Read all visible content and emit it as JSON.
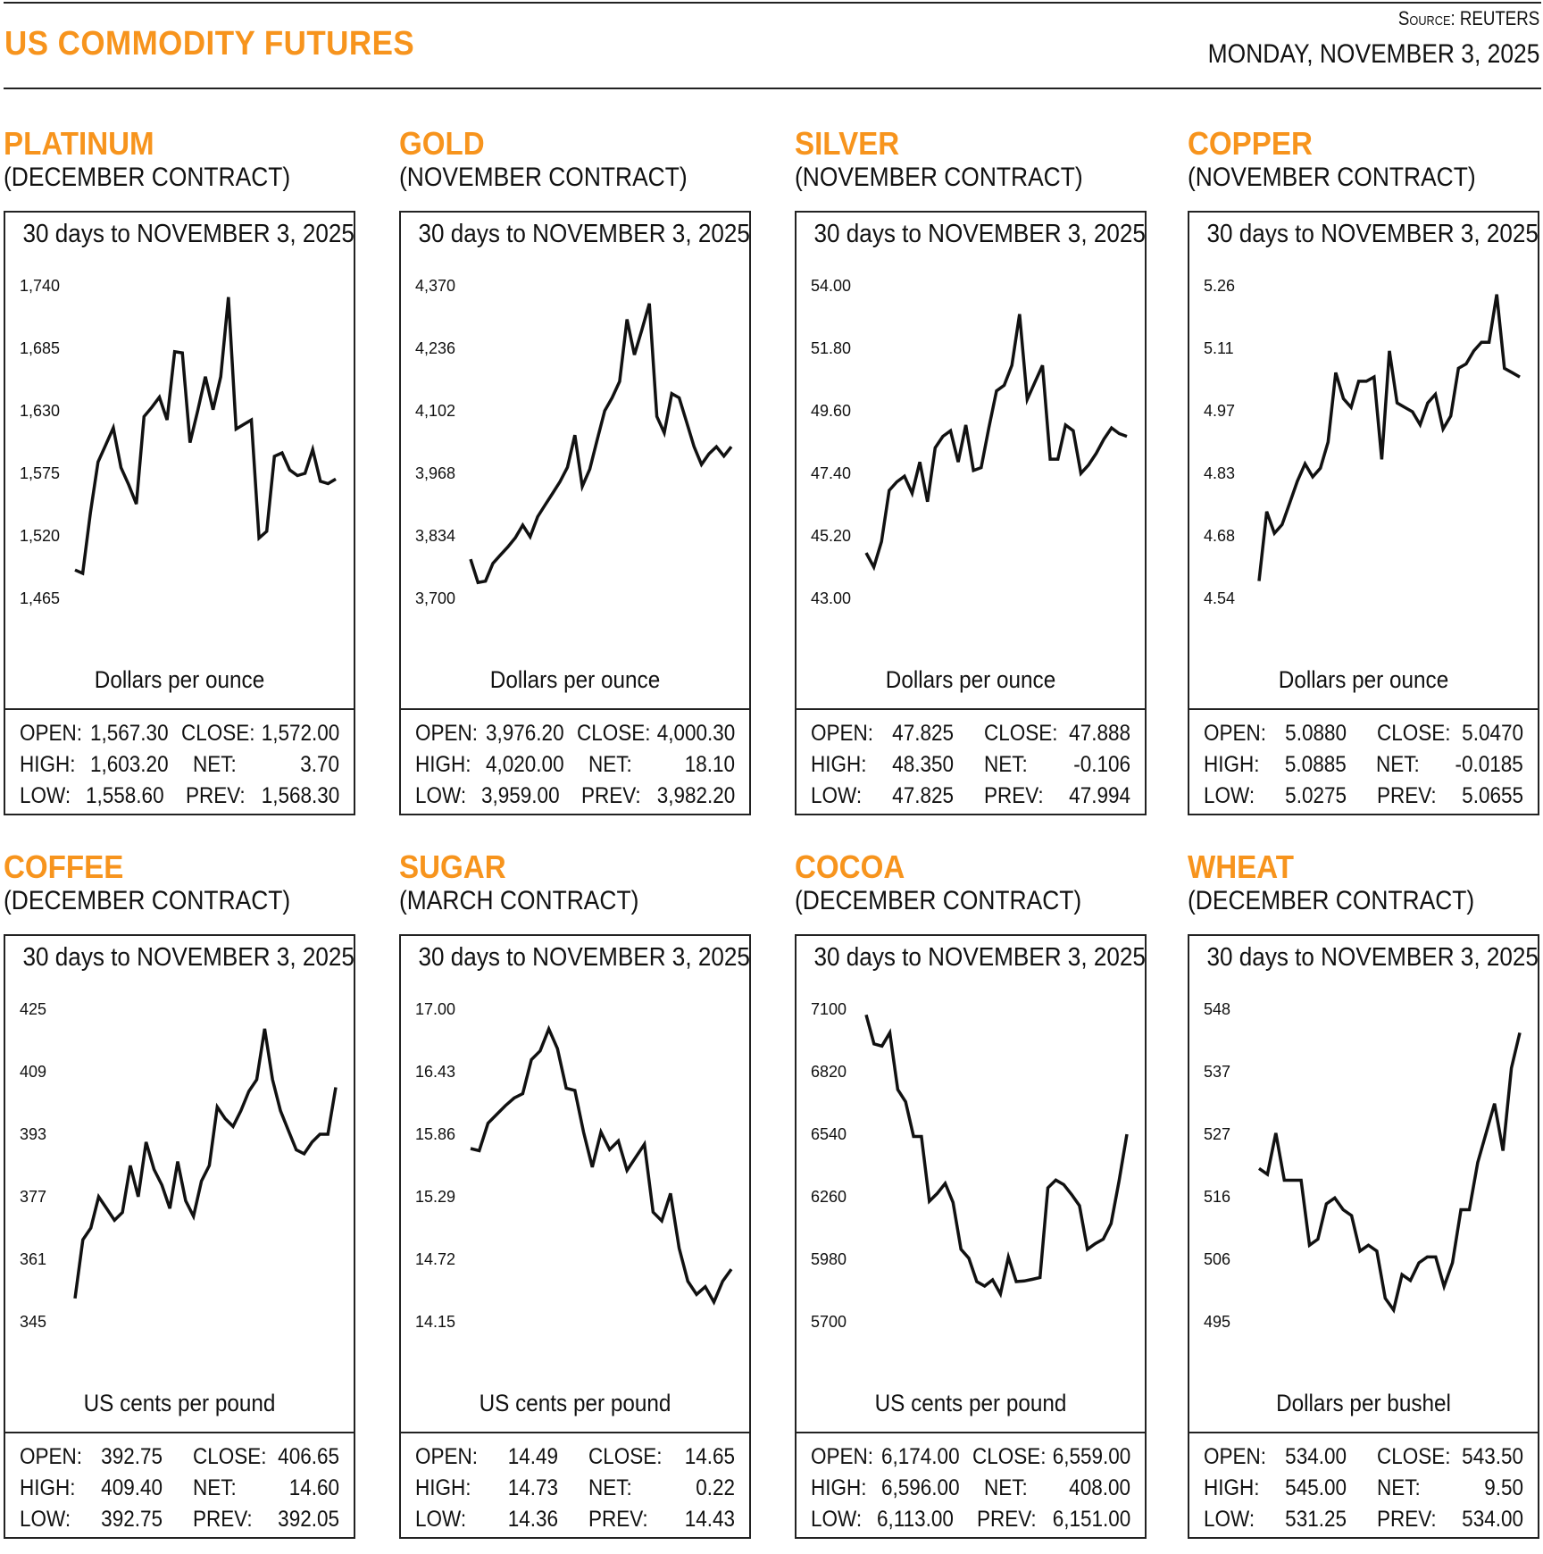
{
  "header": {
    "title": "US COMMODITY FUTURES",
    "source": "Source: REUTERS",
    "date": "MONDAY, NOVEMBER 3, 2025"
  },
  "colors": {
    "accent": "#f7941d",
    "line": "#111111"
  },
  "panels": [
    {
      "name": "PLATINUM",
      "contract": "(DECEMBER CONTRACT)",
      "box_title": "30 days to NOVEMBER 3, 2025",
      "unit": "Dollars per ounce",
      "stats": {
        "open_label": "OPEN:",
        "open": "1,567.30",
        "high_label": "HIGH:",
        "high": "1,603.20",
        "low_label": "LOW:",
        "low": "1,558.60",
        "close_label": "CLOSE:",
        "close": "1,572.00",
        "net_label": "NET:",
        "net": "3.70",
        "prev_label": "PREV:",
        "prev": "1,568.30"
      }
    },
    {
      "name": "GOLD",
      "contract": "(NOVEMBER CONTRACT)",
      "box_title": "30 days to NOVEMBER 3, 2025",
      "unit": "Dollars per ounce",
      "stats": {
        "open_label": "OPEN:",
        "open": "3,976.20",
        "high_label": "HIGH:",
        "high": "4,020.00",
        "low_label": "LOW:",
        "low": "3,959.00",
        "close_label": "CLOSE:",
        "close": "4,000.30",
        "net_label": "NET:",
        "net": "18.10",
        "prev_label": "PREV:",
        "prev": "3,982.20"
      }
    },
    {
      "name": "SILVER",
      "contract": "(NOVEMBER CONTRACT)",
      "box_title": "30 days to NOVEMBER 3, 2025",
      "unit": "Dollars per ounce",
      "stats": {
        "open_label": "OPEN:",
        "open": "47.825",
        "high_label": "HIGH:",
        "high": "48.350",
        "low_label": "LOW:",
        "low": "47.825",
        "close_label": "CLOSE:",
        "close": "47.888",
        "net_label": "NET:",
        "net": "-0.106",
        "prev_label": "PREV:",
        "prev": "47.994"
      }
    },
    {
      "name": "COPPER",
      "contract": "(NOVEMBER CONTRACT)",
      "box_title": "30 days to NOVEMBER 3, 2025",
      "unit": "Dollars per ounce",
      "stats": {
        "open_label": "OPEN:",
        "open": "5.0880",
        "high_label": "HIGH:",
        "high": "5.0885",
        "low_label": "LOW:",
        "low": "5.0275",
        "close_label": "CLOSE:",
        "close": "5.0470",
        "net_label": "NET:",
        "net": "-0.0185",
        "prev_label": "PREV:",
        "prev": "5.0655"
      }
    },
    {
      "name": "COFFEE",
      "contract": "(DECEMBER CONTRACT)",
      "box_title": "30 days to NOVEMBER 3, 2025",
      "unit": "US cents per pound",
      "stats": {
        "open_label": "OPEN:",
        "open": "392.75",
        "high_label": "HIGH:",
        "high": "409.40",
        "low_label": "LOW:",
        "low": "392.75",
        "close_label": "CLOSE:",
        "close": "406.65",
        "net_label": "NET:",
        "net": "14.60",
        "prev_label": "PREV:",
        "prev": "392.05"
      }
    },
    {
      "name": "SUGAR",
      "contract": "(MARCH CONTRACT)",
      "box_title": "30 days to NOVEMBER 3, 2025",
      "unit": "US cents per pound",
      "stats": {
        "open_label": "OPEN:",
        "open": "14.49",
        "high_label": "HIGH:",
        "high": "14.73",
        "low_label": "LOW:",
        "low": "14.36",
        "close_label": "CLOSE:",
        "close": "14.65",
        "net_label": "NET:",
        "net": "0.22",
        "prev_label": "PREV:",
        "prev": "14.43"
      }
    },
    {
      "name": "COCOA",
      "contract": "(DECEMBER CONTRACT)",
      "box_title": "30 days to NOVEMBER 3, 2025",
      "unit": "US cents per pound",
      "stats": {
        "open_label": "OPEN:",
        "open": "6,174.00",
        "high_label": "HIGH:",
        "high": "6,596.00",
        "low_label": "LOW:",
        "low": "6,113.00",
        "close_label": "CLOSE:",
        "close": "6,559.00",
        "net_label": "NET:",
        "net": "408.00",
        "prev_label": "PREV:",
        "prev": "6,151.00"
      }
    },
    {
      "name": "WHEAT",
      "contract": "(DECEMBER CONTRACT)",
      "box_title": "30 days to NOVEMBER 3, 2025",
      "unit": "Dollars per bushel",
      "stats": {
        "open_label": "OPEN:",
        "open": "534.00",
        "high_label": "HIGH:",
        "high": "545.00",
        "low_label": "LOW:",
        "low": "531.25",
        "close_label": "CLOSE:",
        "close": "543.50",
        "net_label": "NET:",
        "net": "9.50",
        "prev_label": "PREV:",
        "prev": "534.00"
      }
    }
  ],
  "chart_data": [
    {
      "type": "line",
      "title": "PLATINUM (DECEMBER CONTRACT)",
      "subtitle": "30 days to NOVEMBER 3, 2025",
      "ylabel": "Dollars per ounce",
      "yticks": [
        "1,465",
        "1,520",
        "1,575",
        "1,630",
        "1,685",
        "1,740"
      ],
      "ylim": [
        1465,
        1740
      ],
      "grid": false,
      "values": [
        1490,
        1487,
        1540,
        1585,
        1600,
        1615,
        1580,
        1565,
        1548,
        1625,
        1633,
        1642,
        1622,
        1682,
        1681,
        1602,
        1630,
        1660,
        1631,
        1660,
        1730,
        1614,
        1618,
        1622,
        1518,
        1524,
        1590,
        1593,
        1578,
        1573,
        1575,
        1596,
        1568,
        1566,
        1570
      ]
    },
    {
      "type": "line",
      "title": "GOLD (NOVEMBER CONTRACT)",
      "subtitle": "30 days to NOVEMBER 3, 2025",
      "ylabel": "Dollars per ounce",
      "yticks": [
        "3,700",
        "3,834",
        "3,968",
        "4,102",
        "4,236",
        "4,370"
      ],
      "ylim": [
        3700,
        4370
      ],
      "grid": false,
      "values": [
        3784,
        3734,
        3737,
        3775,
        3793,
        3810,
        3830,
        3857,
        3832,
        3875,
        3900,
        3925,
        3950,
        3981,
        4050,
        3940,
        3977,
        4040,
        4102,
        4130,
        4165,
        4298,
        4222,
        4276,
        4332,
        4090,
        4055,
        4139,
        4130,
        4078,
        4025,
        3987,
        4010,
        4025,
        4005,
        4025
      ]
    },
    {
      "type": "line",
      "title": "SILVER (NOVEMBER CONTRACT)",
      "subtitle": "30 days to NOVEMBER 3, 2025",
      "ylabel": "Dollars per ounce",
      "yticks": [
        "43.00",
        "45.20",
        "47.40",
        "49.60",
        "51.80",
        "54.00"
      ],
      "ylim": [
        43.0,
        54.0
      ],
      "grid": false,
      "values": [
        44.6,
        44.1,
        45.0,
        46.8,
        47.1,
        47.3,
        46.7,
        47.8,
        46.4,
        48.3,
        48.7,
        48.9,
        47.8,
        49.1,
        47.5,
        47.6,
        49.0,
        50.3,
        50.5,
        51.2,
        53.0,
        50.0,
        50.6,
        51.2,
        47.9,
        47.9,
        49.1,
        48.9,
        47.4,
        47.7,
        48.1,
        48.6,
        49.0,
        48.8,
        48.7
      ]
    },
    {
      "type": "line",
      "title": "COPPER (NOVEMBER CONTRACT)",
      "subtitle": "30 days to NOVEMBER 3, 2025",
      "ylabel": "Dollars per ounce",
      "yticks": [
        "4.54",
        "4.68",
        "4.83",
        "4.97",
        "5.11",
        "5.26"
      ],
      "ylim": [
        4.54,
        5.26
      ],
      "grid": false,
      "values": [
        4.58,
        4.74,
        4.69,
        4.71,
        4.76,
        4.81,
        4.85,
        4.82,
        4.84,
        4.9,
        5.06,
        5.0,
        4.98,
        5.04,
        5.04,
        5.05,
        4.86,
        5.11,
        4.99,
        4.98,
        4.97,
        4.94,
        4.99,
        5.01,
        4.93,
        4.96,
        5.07,
        5.08,
        5.11,
        5.13,
        5.13,
        5.24,
        5.07,
        5.06,
        5.05
      ]
    },
    {
      "type": "line",
      "title": "COFFEE (DECEMBER CONTRACT)",
      "subtitle": "30 days to NOVEMBER 3, 2025",
      "ylabel": "US cents per pound",
      "yticks": [
        "345",
        "361",
        "377",
        "393",
        "409",
        "425"
      ],
      "ylim": [
        345,
        425
      ],
      "grid": false,
      "values": [
        351,
        366,
        369,
        377,
        374,
        371,
        373,
        385,
        377,
        391,
        384,
        380,
        374,
        386,
        376,
        372,
        381,
        385,
        400,
        397,
        395,
        399,
        404,
        407,
        420,
        407,
        399,
        394,
        389,
        388,
        391,
        393,
        393,
        405
      ]
    },
    {
      "type": "line",
      "title": "SUGAR (MARCH CONTRACT)",
      "subtitle": "30 days to NOVEMBER 3, 2025",
      "ylabel": "US cents per pound",
      "yticks": [
        "14.15",
        "14.72",
        "15.29",
        "15.86",
        "16.43",
        "17.00"
      ],
      "ylim": [
        14.15,
        17.0
      ],
      "grid": false,
      "values": [
        15.73,
        15.71,
        15.96,
        16.04,
        16.12,
        16.19,
        16.23,
        16.54,
        16.62,
        16.82,
        16.64,
        16.28,
        16.26,
        15.88,
        15.56,
        15.88,
        15.72,
        15.8,
        15.53,
        15.65,
        15.77,
        15.15,
        15.07,
        15.32,
        14.82,
        14.52,
        14.4,
        14.47,
        14.33,
        14.52,
        14.63
      ]
    },
    {
      "type": "line",
      "title": "COCOA (DECEMBER CONTRACT)",
      "subtitle": "30 days to NOVEMBER 3, 2025",
      "ylabel": "US cents per pound",
      "yticks": [
        "5700",
        "5980",
        "6260",
        "6540",
        "6820",
        "7100"
      ],
      "ylim": [
        5700,
        7100
      ],
      "grid": false,
      "values": [
        7075,
        6945,
        6935,
        6995,
        6740,
        6685,
        6530,
        6530,
        6240,
        6275,
        6320,
        6235,
        6025,
        5985,
        5880,
        5860,
        5888,
        5825,
        5990,
        5880,
        5883,
        5890,
        5898,
        6300,
        6335,
        6315,
        6270,
        6220,
        6025,
        6050,
        6070,
        6140,
        6330,
        6540
      ]
    },
    {
      "type": "line",
      "title": "WHEAT (DECEMBER CONTRACT)",
      "subtitle": "30 days to NOVEMBER 3, 2025",
      "ylabel": "Dollars per bushel",
      "yticks": [
        "495",
        "506",
        "516",
        "527",
        "537",
        "548"
      ],
      "ylim": [
        495,
        548
      ],
      "grid": false,
      "values": [
        521,
        520,
        527,
        519,
        519,
        519,
        508,
        509,
        515,
        516,
        514,
        513,
        507,
        508,
        507,
        499,
        497,
        503,
        502,
        505,
        506,
        506,
        501,
        505,
        514,
        514,
        522,
        527,
        532,
        524,
        538,
        544
      ]
    }
  ]
}
